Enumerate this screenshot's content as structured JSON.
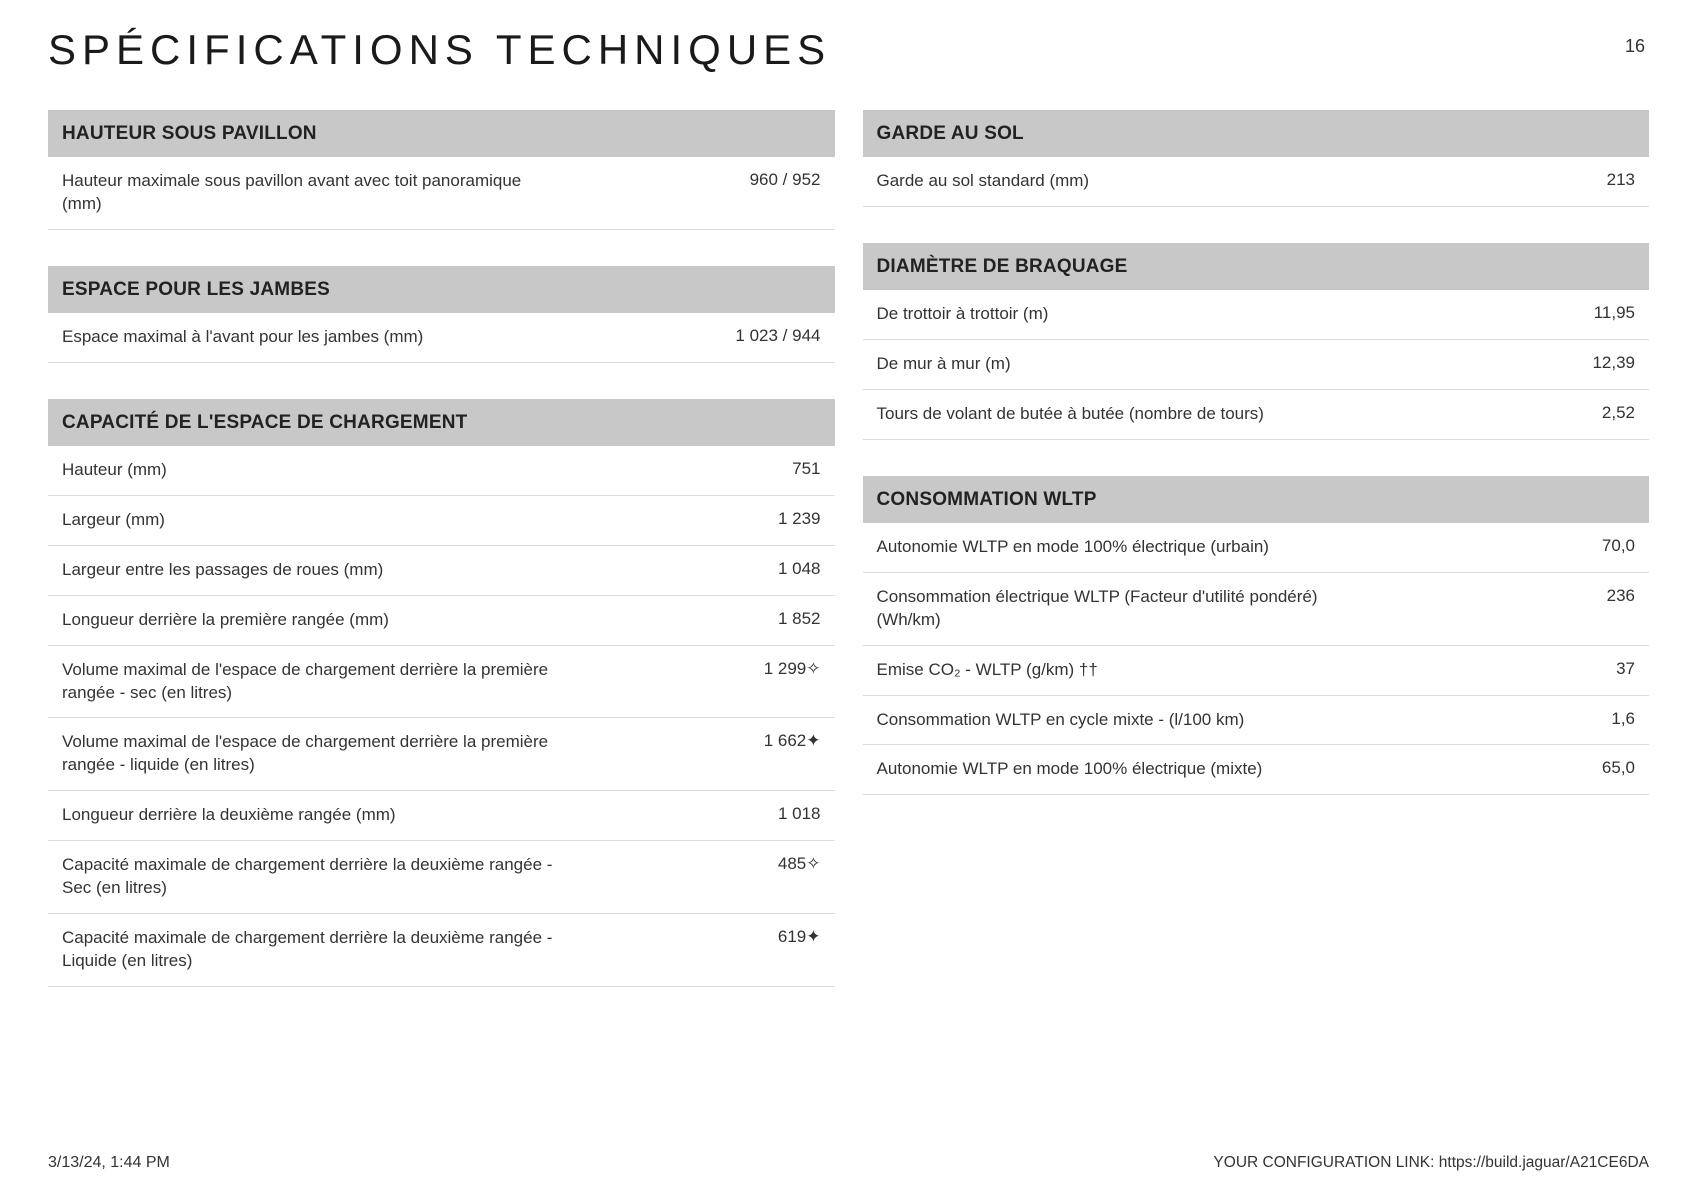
{
  "page": {
    "title": "SPÉCIFICATIONS TECHNIQUES",
    "number": "16"
  },
  "left_sections": [
    {
      "title": "HAUTEUR SOUS PAVILLON",
      "rows": [
        {
          "label": "Hauteur maximale sous pavillon avant avec toit panoramique (mm)",
          "value": "960 / 952"
        }
      ]
    },
    {
      "title": "ESPACE POUR LES JAMBES",
      "rows": [
        {
          "label": "Espace maximal à l'avant pour les jambes (mm)",
          "value": "1 023 / 944"
        }
      ]
    },
    {
      "title": "CAPACITÉ DE L'ESPACE DE CHARGEMENT",
      "rows": [
        {
          "label": "Hauteur (mm)",
          "value": "751"
        },
        {
          "label": "Largeur (mm)",
          "value": "1 239"
        },
        {
          "label": "Largeur entre les passages de roues (mm)",
          "value": "1 048"
        },
        {
          "label": "Longueur derrière la première rangée (mm)",
          "value": "1 852"
        },
        {
          "label": "Volume maximal de l'espace de chargement derrière la première rangée - sec (en litres)",
          "value": "1 299✧"
        },
        {
          "label": "Volume maximal de l'espace de chargement derrière la première rangée - liquide (en litres)",
          "value": "1 662✦"
        },
        {
          "label": "Longueur derrière la deuxième rangée (mm)",
          "value": "1 018"
        },
        {
          "label": "Capacité maximale de chargement derrière la deuxième rangée - Sec (en litres)",
          "value": "485✧"
        },
        {
          "label": "Capacité maximale de chargement derrière la deuxième rangée - Liquide (en litres)",
          "value": "619✦"
        }
      ]
    }
  ],
  "right_sections": [
    {
      "title": "GARDE AU SOL",
      "rows": [
        {
          "label": "Garde au sol standard (mm)",
          "value": "213"
        }
      ]
    },
    {
      "title": "DIAMÈTRE DE BRAQUAGE",
      "rows": [
        {
          "label": "De trottoir à trottoir (m)",
          "value": "11,95"
        },
        {
          "label": "De mur à mur (m)",
          "value": "12,39"
        },
        {
          "label": "Tours de volant de butée à butée (nombre de tours)",
          "value": "2,52"
        }
      ]
    },
    {
      "title": "CONSOMMATION WLTP",
      "rows": [
        {
          "label": "Autonomie WLTP en mode 100% électrique (urbain)",
          "value": "70,0"
        },
        {
          "label": "Consommation électrique WLTP (Facteur d'utilité pondéré) (Wh/km)",
          "value": "236"
        },
        {
          "label": "Emise CO₂ - WLTP (g/km) ††",
          "value": "37"
        },
        {
          "label": "Consommation WLTP en cycle mixte - (l/100 km)",
          "value": "1,6"
        },
        {
          "label": "Autonomie WLTP en mode 100% électrique (mixte)",
          "value": "65,0"
        }
      ]
    }
  ],
  "footer": {
    "timestamp": "3/13/24, 1:44 PM",
    "link": "YOUR CONFIGURATION LINK: https://build.jaguar/A21CE6DA"
  },
  "colors": {
    "section_header_bg": "#c8c8c8",
    "row_border": "#dcdcdc",
    "text": "#333333",
    "title": "#1a1a1a",
    "background": "#ffffff"
  },
  "typography": {
    "title_fontsize": 42,
    "title_letter_spacing": 6,
    "section_title_fontsize": 19,
    "row_fontsize": 17,
    "footer_fontsize": 16
  }
}
